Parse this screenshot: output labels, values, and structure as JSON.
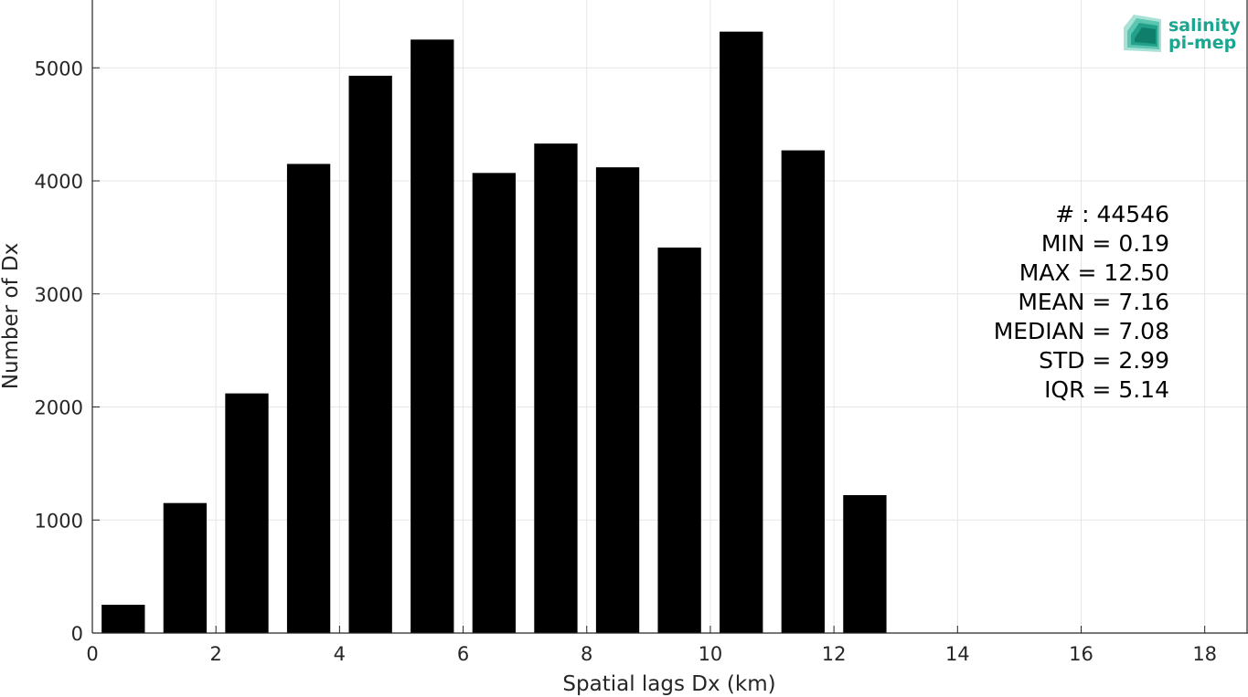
{
  "chart_data": {
    "type": "bar",
    "title": "",
    "xlabel": "Spatial lags Dx (km)",
    "ylabel": "Number of Dx",
    "x": [
      0.5,
      1.5,
      2.5,
      3.5,
      4.5,
      5.5,
      6.5,
      7.5,
      8.5,
      9.5,
      10.5,
      11.5,
      12.5
    ],
    "values": [
      250,
      1150,
      2120,
      4150,
      4930,
      5250,
      4070,
      4330,
      4120,
      3410,
      5320,
      4270,
      1220
    ],
    "bar_width": 0.7,
    "bar_color": "#000000",
    "xlim": [
      0,
      18.7
    ],
    "ylim": [
      0,
      5600
    ],
    "xticks": [
      0,
      2,
      4,
      6,
      8,
      10,
      12,
      14,
      16,
      18
    ],
    "yticks": [
      0,
      1000,
      2000,
      3000,
      4000,
      5000
    ],
    "grid": true,
    "annotations": [
      "# : 44546",
      "MIN = 0.19",
      "MAX =  12.50",
      "MEAN = 7.16",
      "MEDIAN = 7.08",
      "STD = 2.99",
      "IQR = 5.14"
    ]
  },
  "logo": {
    "line1": "salinity",
    "line2": "pi-mep",
    "color": "#1aa68f"
  }
}
